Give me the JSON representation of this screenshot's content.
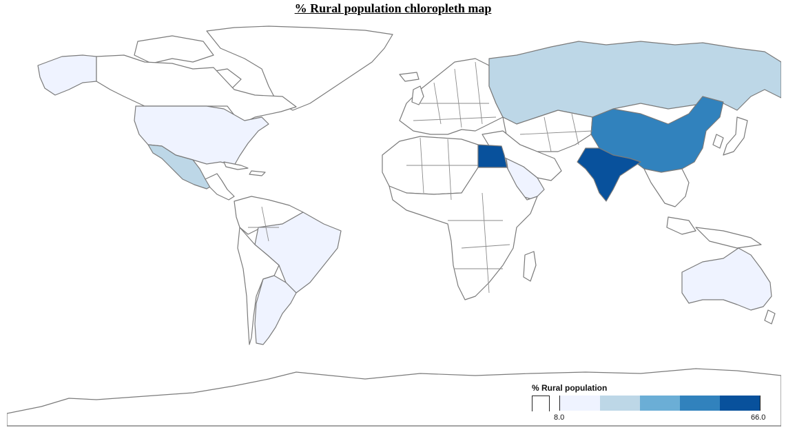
{
  "title": "% Rural population chloropleth map",
  "legend": {
    "title": "% Rural population",
    "min_label": "8.0",
    "max_label": "66.0",
    "colors": [
      "#eff3ff",
      "#bdd7e7",
      "#6baed6",
      "#3182bd",
      "#08519c"
    ]
  },
  "map": {
    "colors": {
      "no_data": "#ffffff",
      "bin1": "#eff3ff",
      "bin2": "#bdd7e7",
      "bin3": "#6baed6",
      "bin4": "#3182bd",
      "bin5": "#08519c"
    },
    "highlighted_regions": [
      {
        "name": "Russia",
        "bin": "bin2"
      },
      {
        "name": "China",
        "bin": "bin4"
      },
      {
        "name": "India",
        "bin": "bin5"
      },
      {
        "name": "Egypt",
        "bin": "bin5"
      },
      {
        "name": "Saudi Arabia",
        "bin": "bin1"
      },
      {
        "name": "Mexico",
        "bin": "bin2"
      },
      {
        "name": "United States",
        "bin": "bin1"
      },
      {
        "name": "Alaska (US)",
        "bin": "bin1"
      },
      {
        "name": "Brazil",
        "bin": "bin1"
      },
      {
        "name": "Argentina",
        "bin": "bin1"
      },
      {
        "name": "Australia",
        "bin": "bin1"
      }
    ]
  }
}
